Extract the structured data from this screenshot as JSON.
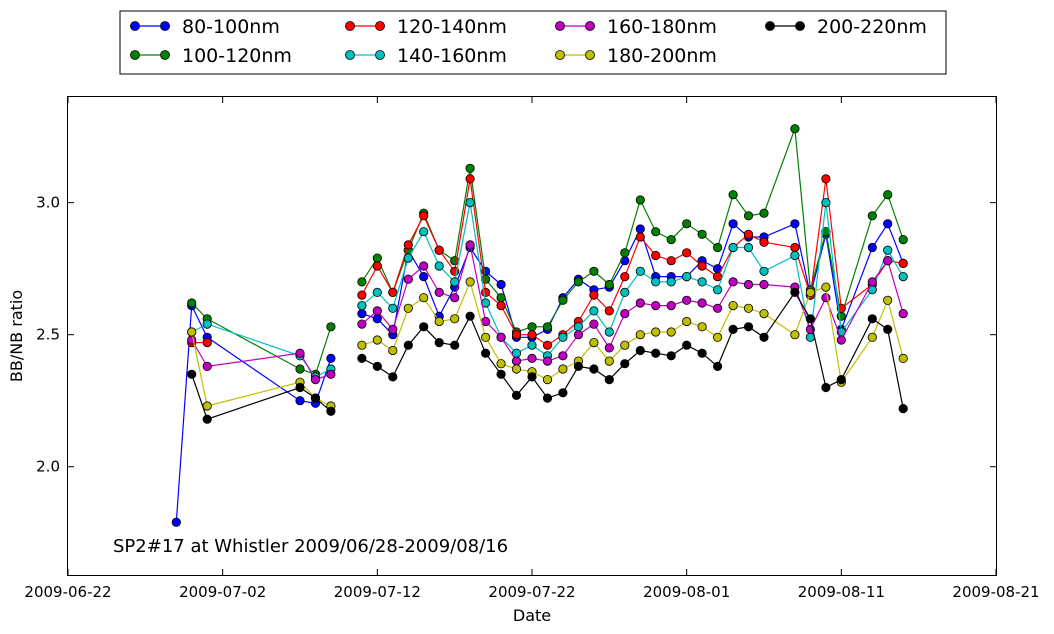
{
  "chart_data": {
    "type": "line",
    "xlabel": "Date",
    "ylabel": "BB/NB ratio",
    "annotation": "SP2#17 at Whistler 2009/06/28-2009/08/16",
    "legend_placement": "top-center",
    "grid": false,
    "x_axis": {
      "type": "date",
      "range": [
        "2009-06-22",
        "2009-08-21"
      ],
      "ticks": [
        "2009-06-22",
        "2009-07-02",
        "2009-07-12",
        "2009-07-22",
        "2009-08-01",
        "2009-08-11",
        "2009-08-21"
      ]
    },
    "y_axis": {
      "range": [
        1.59,
        3.4
      ],
      "ticks": [
        2.0,
        2.5,
        3.0
      ],
      "tick_labels": [
        "2.0",
        "2.5",
        "3.0"
      ]
    },
    "dates": [
      "2009-06-29",
      "2009-06-30",
      "2009-07-01",
      "2009-07-07",
      "2009-07-08",
      "2009-07-09",
      "2009-07-11",
      "2009-07-12",
      "2009-07-13",
      "2009-07-14",
      "2009-07-15",
      "2009-07-16",
      "2009-07-17",
      "2009-07-18",
      "2009-07-19",
      "2009-07-20",
      "2009-07-21",
      "2009-07-22",
      "2009-07-23",
      "2009-07-24",
      "2009-07-25",
      "2009-07-26",
      "2009-07-27",
      "2009-07-28",
      "2009-07-29",
      "2009-07-30",
      "2009-07-31",
      "2009-08-01",
      "2009-08-02",
      "2009-08-03",
      "2009-08-04",
      "2009-08-05",
      "2009-08-06",
      "2009-08-08",
      "2009-08-09",
      "2009-08-10",
      "2009-08-11",
      "2009-08-13",
      "2009-08-14",
      "2009-08-15"
    ],
    "series": [
      {
        "name": "80-100nm",
        "color": "#0000ff",
        "values": [
          1.79,
          2.61,
          2.49,
          2.25,
          2.24,
          2.41,
          2.58,
          2.56,
          2.5,
          2.82,
          2.72,
          2.57,
          2.68,
          2.83,
          2.74,
          2.69,
          2.49,
          2.49,
          2.52,
          2.64,
          2.71,
          2.67,
          2.68,
          2.78,
          2.9,
          2.72,
          2.72,
          2.72,
          2.78,
          2.75,
          2.92,
          2.87,
          2.87,
          2.92,
          2.65,
          2.88,
          2.52,
          2.83,
          2.92,
          2.77
        ]
      },
      {
        "name": "100-120nm",
        "color": "#008000",
        "values": [
          null,
          2.62,
          2.56,
          2.37,
          2.35,
          2.53,
          2.7,
          2.79,
          2.66,
          2.82,
          2.96,
          2.82,
          2.78,
          3.13,
          2.71,
          2.64,
          2.51,
          2.53,
          2.53,
          2.63,
          2.7,
          2.74,
          2.69,
          2.81,
          3.01,
          2.89,
          2.86,
          2.92,
          2.88,
          2.83,
          3.03,
          2.95,
          2.96,
          3.28,
          2.67,
          2.89,
          2.57,
          2.95,
          3.03,
          2.86
        ]
      },
      {
        "name": "120-140nm",
        "color": "#ff0000",
        "values": [
          null,
          2.47,
          2.47,
          null,
          null,
          null,
          2.65,
          2.76,
          2.66,
          2.84,
          2.95,
          2.82,
          2.74,
          3.09,
          2.66,
          2.61,
          2.5,
          2.5,
          2.46,
          2.5,
          2.55,
          2.65,
          2.59,
          2.72,
          2.87,
          2.8,
          2.78,
          2.81,
          2.76,
          2.72,
          2.83,
          2.88,
          2.85,
          2.83,
          2.65,
          3.09,
          2.6,
          2.69,
          2.78,
          2.77
        ]
      },
      {
        "name": "140-160nm",
        "color": "#00bfbf",
        "values": [
          null,
          2.51,
          2.54,
          2.42,
          2.34,
          2.37,
          2.61,
          2.66,
          2.6,
          2.79,
          2.89,
          2.76,
          2.7,
          3.0,
          2.62,
          2.49,
          2.43,
          2.46,
          2.42,
          2.49,
          2.53,
          2.59,
          2.51,
          2.66,
          2.74,
          2.7,
          2.7,
          2.72,
          2.7,
          2.67,
          2.83,
          2.83,
          2.74,
          2.8,
          2.49,
          3.0,
          2.51,
          2.67,
          2.82,
          2.72
        ]
      },
      {
        "name": "160-180nm",
        "color": "#bf00bf",
        "values": [
          null,
          2.48,
          2.38,
          2.43,
          2.33,
          2.35,
          2.54,
          2.59,
          2.52,
          2.71,
          2.76,
          2.66,
          2.64,
          2.84,
          2.55,
          2.49,
          2.4,
          2.41,
          2.4,
          2.42,
          2.5,
          2.54,
          2.45,
          2.58,
          2.62,
          2.61,
          2.61,
          2.63,
          2.62,
          2.6,
          2.7,
          2.69,
          2.69,
          2.68,
          2.52,
          2.64,
          2.48,
          2.7,
          2.78,
          2.58
        ]
      },
      {
        "name": "180-200nm",
        "color": "#bfbf00",
        "values": [
          null,
          2.51,
          2.23,
          2.32,
          2.26,
          2.23,
          2.46,
          2.48,
          2.44,
          2.6,
          2.64,
          2.55,
          2.56,
          2.7,
          2.49,
          2.39,
          2.37,
          2.36,
          2.33,
          2.37,
          2.4,
          2.47,
          2.4,
          2.46,
          2.5,
          2.51,
          2.51,
          2.55,
          2.53,
          2.49,
          2.61,
          2.6,
          2.58,
          2.5,
          2.66,
          2.68,
          2.32,
          2.49,
          2.63,
          2.41
        ]
      },
      {
        "name": "200-220nm",
        "color": "#000000",
        "values": [
          null,
          2.35,
          2.18,
          2.3,
          2.26,
          2.21,
          2.41,
          2.38,
          2.34,
          2.46,
          2.53,
          2.47,
          2.46,
          2.57,
          2.43,
          2.35,
          2.27,
          2.34,
          2.26,
          2.28,
          2.38,
          2.37,
          2.33,
          2.39,
          2.44,
          2.43,
          2.42,
          2.46,
          2.43,
          2.38,
          2.52,
          2.53,
          2.49,
          2.66,
          2.56,
          2.3,
          2.33,
          2.56,
          2.52,
          2.22
        ]
      }
    ]
  }
}
